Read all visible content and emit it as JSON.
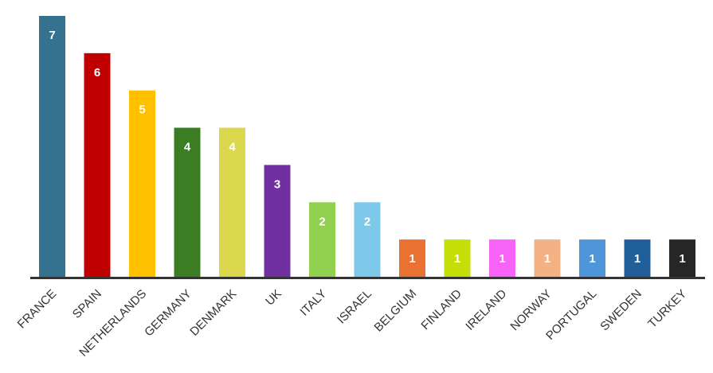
{
  "chart_data": {
    "type": "bar",
    "categories": [
      "FRANCE",
      "SPAIN",
      "NETHERLANDS",
      "GERMANY",
      "DENMARK",
      "UK",
      "ITALY",
      "ISRAEL",
      "BELGIUM",
      "FINLAND",
      "IRELAND",
      "NORWAY",
      "PORTUGAL",
      "SWEDEN",
      "TURKEY"
    ],
    "values": [
      7,
      6,
      5,
      4,
      4,
      3,
      2,
      2,
      1,
      1,
      1,
      1,
      1,
      1,
      1
    ],
    "colors": [
      "#35728f",
      "#c00000",
      "#ffc000",
      "#3a7d22",
      "#dcd84e",
      "#7030a0",
      "#92d050",
      "#7ec8ea",
      "#e97132",
      "#c6de08",
      "#f763f7",
      "#f4b183",
      "#4e95d9",
      "#215f9a",
      "#262626"
    ]
  }
}
